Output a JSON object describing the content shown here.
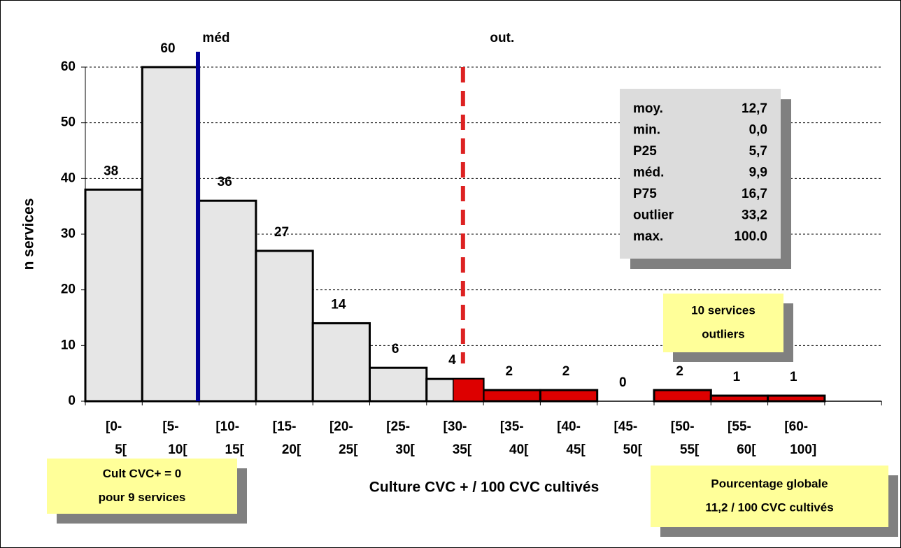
{
  "chart_data": {
    "type": "histogram",
    "categories": [
      "[0-5[",
      "[5-10[",
      "[10-15[",
      "[15-20[",
      "[20-25[",
      "[25-30[",
      "[30-35[",
      "[35-40[",
      "[40-45[",
      "[45-50[",
      "[50-55[",
      "[55-60[",
      "[60-100]"
    ],
    "bins": [
      0,
      5,
      10,
      15,
      20,
      25,
      30,
      35,
      40,
      45,
      50,
      55,
      60,
      100
    ],
    "values": [
      38,
      60,
      36,
      27,
      14,
      6,
      4,
      2,
      2,
      0,
      2,
      1,
      1
    ],
    "colors": [
      "#e6e6e6",
      "#e6e6e6",
      "#e6e6e6",
      "#e6e6e6",
      "#e6e6e6",
      "#e6e6e6",
      "#e6e6e6",
      "#dd0000",
      "#dd0000",
      "#dd0000",
      "#dd0000",
      "#dd0000",
      "#dd0000"
    ],
    "outlier_color": "#dd0000",
    "ylim": [
      0,
      60
    ],
    "yticks": [
      0,
      10,
      20,
      30,
      40,
      50,
      60
    ],
    "grid": true,
    "y_label": "n services",
    "x_label": "Culture CVC + / 100 CVC cultivés",
    "markers": [
      {
        "label": "méd",
        "value": 9.9,
        "color": "#000099",
        "style": "solid"
      },
      {
        "label": "out.",
        "value": 33.2,
        "color": "#dd2222",
        "style": "dashed"
      }
    ],
    "stats": [
      {
        "label": "moy.",
        "value": "12,7",
        "color": "#000000"
      },
      {
        "label": "min.",
        "value": "0,0",
        "color": "#000000"
      },
      {
        "label": "P25",
        "value": "5,7",
        "color": "#000000"
      },
      {
        "label": "méd.",
        "value": "9,9",
        "color": "#0000cc"
      },
      {
        "label": "P75",
        "value": "16,7",
        "color": "#000000"
      },
      {
        "label": "outlier",
        "value": "33,2",
        "color": "#dd0000"
      },
      {
        "label": "max.",
        "value": "100.0",
        "color": "#000000"
      }
    ],
    "notes": [
      {
        "lines": [
          "10 services",
          "outliers"
        ]
      },
      {
        "lines": [
          "Cult CVC+ = 0",
          "pour 9 services"
        ]
      },
      {
        "lines": [
          "Pourcentage globale",
          "11,2 / 100 CVC cultivés"
        ]
      }
    ]
  }
}
